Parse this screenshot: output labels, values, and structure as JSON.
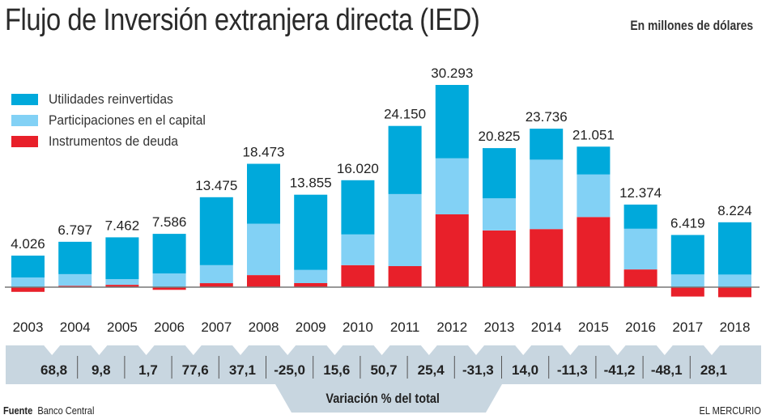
{
  "header": {
    "title": "Flujo de Inversión extranjera directa (IED)",
    "unit_note": "En millones de dólares"
  },
  "legend": [
    {
      "key": "utilidades",
      "label": "Utilidades reinvertidas",
      "color": "#00a9db"
    },
    {
      "key": "participaciones",
      "label": "Participaciones en el capital",
      "color": "#82d1f5"
    },
    {
      "key": "deuda",
      "label": "Instrumentos de deuda",
      "color": "#e8202a"
    }
  ],
  "chart_data": {
    "type": "bar",
    "stacked": true,
    "title": "Flujo de Inversión extranjera directa (IED)",
    "subtitle": "En millones de dólares",
    "xlabel": "",
    "ylabel": "",
    "legend_position": "top-left",
    "grid": false,
    "categories": [
      "2003",
      "2004",
      "2005",
      "2006",
      "2007",
      "2008",
      "2009",
      "2010",
      "2011",
      "2012",
      "2013",
      "2014",
      "2015",
      "2016",
      "2017",
      "2018"
    ],
    "totals": [
      4026,
      6797,
      7462,
      7586,
      13475,
      18473,
      13855,
      16020,
      24150,
      30293,
      20825,
      23736,
      21051,
      12374,
      6419,
      8224
    ],
    "total_labels": [
      "4.026",
      "6.797",
      "7.462",
      "7.586",
      "13.475",
      "18.473",
      "13.855",
      "16.020",
      "24.150",
      "30.293",
      "20.825",
      "23.736",
      "21.051",
      "12.374",
      "6.419",
      "8.224"
    ],
    "series": [
      {
        "name": "Instrumentos de deuda",
        "color": "#e8202a",
        "values": [
          -700,
          200,
          350,
          -400,
          600,
          1800,
          600,
          3300,
          3150,
          10900,
          8500,
          8700,
          10500,
          2650,
          -1400,
          -1500
        ]
      },
      {
        "name": "Participaciones en el capital",
        "color": "#82d1f5",
        "values": [
          1450,
          1750,
          850,
          2050,
          2700,
          7700,
          2000,
          4600,
          10800,
          8400,
          4800,
          10400,
          6400,
          6100,
          1900,
          1900
        ]
      },
      {
        "name": "Utilidades reinvertidas",
        "color": "#00a9db",
        "values": [
          3276,
          4847,
          6262,
          5936,
          10175,
          8973,
          11255,
          8120,
          10200,
          10993,
          7525,
          4636,
          4151,
          3624,
          5919,
          7824
        ]
      }
    ],
    "ylim": [
      -2000,
      31000
    ],
    "variation": {
      "label": "Variación % del total",
      "values": [
        "68,8",
        "9,8",
        "1,7",
        "77,6",
        "37,1",
        "-25,0",
        "15,6",
        "50,7",
        "25,4",
        "-31,3",
        "14,0",
        "-11,3",
        "-41,2",
        "-48,1",
        "28,1"
      ]
    }
  },
  "footer": {
    "source_label": "Fuente",
    "source_value": "Banco Central",
    "brand": "EL MERCURIO"
  },
  "colors": {
    "band": "#c8d6e0",
    "axis": "#777777"
  }
}
